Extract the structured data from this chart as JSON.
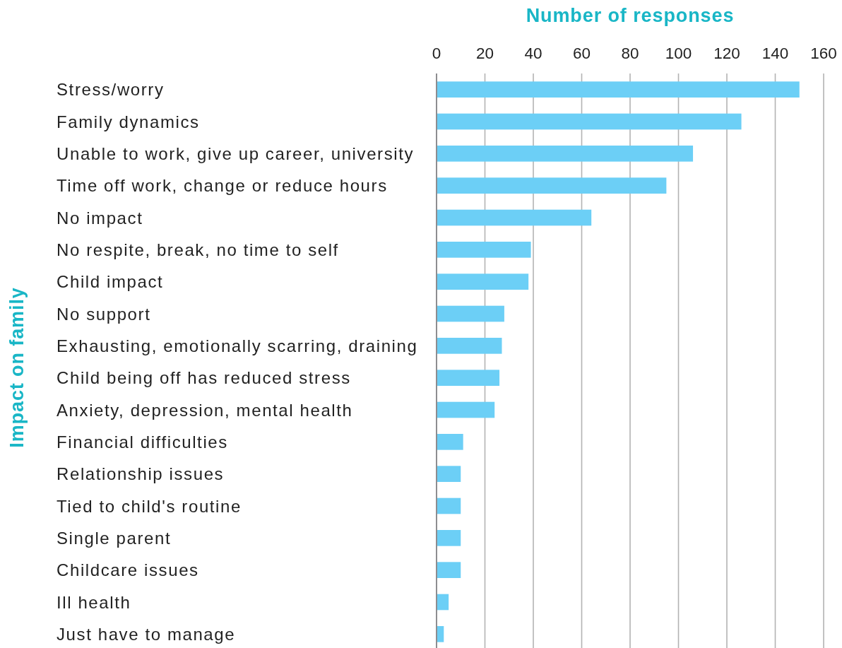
{
  "chart_data": {
    "type": "bar",
    "orientation": "horizontal",
    "xlabel": "Number of responses",
    "ylabel": "Impact on family",
    "categories": [
      "Stress/worry",
      "Family dynamics",
      "Unable to work, give up career, university",
      "Time off work, change or reduce hours",
      "No impact",
      "No respite, break, no time to self",
      "Child impact",
      "No support",
      "Exhausting, emotionally scarring, draining",
      "Child being off has reduced stress",
      "Anxiety, depression, mental health",
      "Financial difficulties",
      "Relationship issues",
      "Tied to child's routine",
      "Single parent",
      "Childcare issues",
      "Ill health",
      "Just have to manage"
    ],
    "values": [
      150,
      126,
      106,
      95,
      64,
      39,
      38,
      28,
      27,
      26,
      24,
      11,
      10,
      10,
      10,
      10,
      5,
      3
    ],
    "color": "#6ccff6",
    "xlim": [
      0,
      160
    ],
    "xticks": [
      0,
      20,
      40,
      60,
      80,
      100,
      120,
      140,
      160
    ],
    "grid": "x"
  }
}
